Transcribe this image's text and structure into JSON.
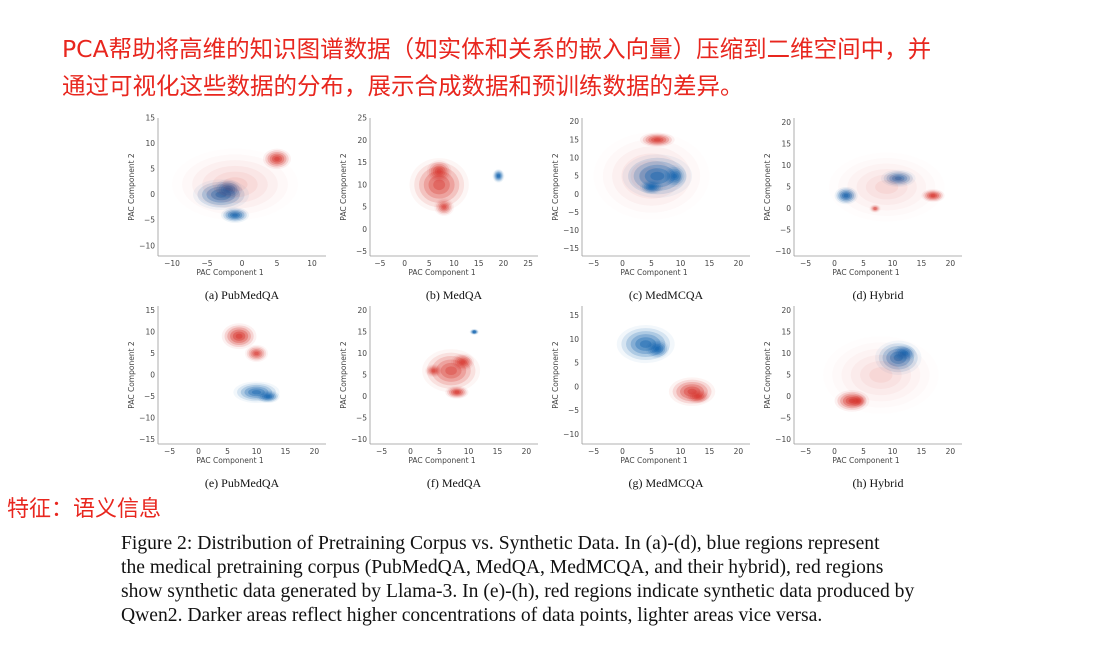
{
  "annotation_top": [
    "PCA帮助将高维的知识图谱数据（如实体和关系的嵌入向量）压缩到二维空间中，并",
    "通过可视化这些数据的分布，展示合成数据和预训练数据的差异。"
  ],
  "annotation_side": "特征：语义信息",
  "colors": {
    "annotation": "#e8261e",
    "blue": "#1565b0",
    "red": "#d83a33"
  },
  "figure": {
    "caption_lines": [
      "Figure 2: Distribution of Pretraining Corpus vs. Synthetic Data. In (a)-(d), blue regions represent",
      "the medical pretraining corpus (PubMedQA, MedQA, MedMCQA, and their hybrid), red regions",
      "show synthetic data generated by Llama-3. In (e)-(h), red regions indicate synthetic data produced by",
      "Qwen2. Darker areas reflect higher concentrations of data points, lighter areas vice versa."
    ],
    "axis_xlabel": "PAC Component 1",
    "axis_ylabel": "PAC Component 2"
  },
  "chart_data": [
    {
      "type": "heatmap",
      "caption": "(a) PubMedQA",
      "xticks": [
        -10,
        -5,
        0,
        5,
        10
      ],
      "yticks": [
        -10,
        -5,
        0,
        5,
        10,
        15
      ],
      "xlim": [
        -12,
        12
      ],
      "ylim": [
        -12,
        15
      ],
      "series": [
        {
          "name": "pretraining",
          "color": "blue",
          "clusters": [
            [
              -3,
              0,
              4,
              3,
              0.8
            ],
            [
              -1,
              -4,
              2,
              1.5,
              1
            ],
            [
              -2,
              1,
              2,
              2,
              1
            ]
          ]
        },
        {
          "name": "synthetic",
          "color": "red",
          "clusters": [
            [
              5,
              7,
              2,
              2,
              1
            ],
            [
              -1,
              2,
              9,
              7,
              0.15
            ]
          ]
        }
      ]
    },
    {
      "type": "heatmap",
      "caption": "(b) MedQA",
      "xticks": [
        -5,
        0,
        5,
        10,
        15,
        20,
        25
      ],
      "yticks": [
        -5,
        0,
        5,
        10,
        15,
        20,
        25
      ],
      "xlim": [
        -7,
        27
      ],
      "ylim": [
        -6,
        25
      ],
      "series": [
        {
          "name": "synthetic",
          "color": "red",
          "clusters": [
            [
              7,
              10,
              6,
              6,
              0.7
            ],
            [
              7,
              13,
              2.5,
              2.5,
              1
            ],
            [
              8,
              5,
              2,
              2,
              0.8
            ]
          ]
        },
        {
          "name": "pretraining",
          "color": "blue",
          "clusters": [
            [
              19,
              12,
              1.2,
              1.5,
              1
            ]
          ]
        }
      ]
    },
    {
      "type": "heatmap",
      "caption": "(c) MedMCQA",
      "xticks": [
        -5,
        0,
        5,
        10,
        15,
        20
      ],
      "yticks": [
        -15,
        -10,
        -5,
        0,
        5,
        10,
        15,
        20
      ],
      "xlim": [
        -7,
        22
      ],
      "ylim": [
        -17,
        21
      ],
      "series": [
        {
          "name": "synthetic",
          "color": "red",
          "clusters": [
            [
              6,
              15,
              3,
              2,
              1
            ],
            [
              5,
              5,
              10,
              12,
              0.15
            ]
          ]
        },
        {
          "name": "pretraining",
          "color": "blue",
          "clusters": [
            [
              6,
              5,
              6,
              6,
              0.8
            ],
            [
              5,
              2,
              2,
              2,
              1
            ],
            [
              9,
              5,
              2,
              3,
              0.9
            ]
          ]
        }
      ]
    },
    {
      "type": "heatmap",
      "caption": "(d) Hybrid",
      "xticks": [
        -5,
        0,
        5,
        10,
        15,
        20
      ],
      "yticks": [
        -10,
        -5,
        0,
        5,
        10,
        15,
        20
      ],
      "xlim": [
        -7,
        22
      ],
      "ylim": [
        -11,
        21
      ],
      "series": [
        {
          "name": "pretraining",
          "color": "blue",
          "clusters": [
            [
              2,
              3,
              2,
              2,
              1
            ],
            [
              11,
              7,
              3,
              2,
              0.8
            ]
          ]
        },
        {
          "name": "synthetic",
          "color": "red",
          "clusters": [
            [
              17,
              3,
              2,
              1.5,
              1
            ],
            [
              7,
              0,
              1,
              1,
              0.6
            ],
            [
              9,
              5,
              10,
              8,
              0.12
            ]
          ]
        }
      ]
    },
    {
      "type": "heatmap",
      "caption": "(e) PubMedQA",
      "xticks": [
        -5,
        0,
        5,
        10,
        15,
        20
      ],
      "yticks": [
        -15,
        -10,
        -5,
        0,
        5,
        10,
        15
      ],
      "xlim": [
        -7,
        22
      ],
      "ylim": [
        -16,
        16
      ],
      "series": [
        {
          "name": "synthetic",
          "color": "red",
          "clusters": [
            [
              7,
              9,
              3,
              3,
              1
            ],
            [
              10,
              5,
              2,
              2,
              0.8
            ]
          ]
        },
        {
          "name": "pretraining",
          "color": "blue",
          "clusters": [
            [
              10,
              -4,
              4,
              2.5,
              0.8
            ],
            [
              12,
              -5,
              2,
              1.5,
              1
            ]
          ]
        }
      ]
    },
    {
      "type": "heatmap",
      "caption": "(f) MedQA",
      "xticks": [
        -5,
        0,
        5,
        10,
        15,
        20
      ],
      "yticks": [
        -10,
        -5,
        0,
        5,
        10,
        15,
        20
      ],
      "xlim": [
        -7,
        22
      ],
      "ylim": [
        -11,
        21
      ],
      "series": [
        {
          "name": "synthetic",
          "color": "red",
          "clusters": [
            [
              7,
              6,
              5,
              5,
              0.7
            ],
            [
              9,
              8,
              2,
              2,
              1
            ],
            [
              8,
              1,
              2,
              1.5,
              1
            ],
            [
              4,
              6,
              1.5,
              1.5,
              0.8
            ]
          ]
        },
        {
          "name": "pretraining",
          "color": "blue",
          "clusters": [
            [
              11,
              15,
              0.8,
              0.7,
              1
            ]
          ]
        }
      ]
    },
    {
      "type": "heatmap",
      "caption": "(g) MedMCQA",
      "xticks": [
        -5,
        0,
        5,
        10,
        15,
        20
      ],
      "yticks": [
        -10,
        -5,
        0,
        5,
        10,
        15
      ],
      "xlim": [
        -7,
        22
      ],
      "ylim": [
        -12,
        17
      ],
      "series": [
        {
          "name": "pretraining",
          "color": "blue",
          "clusters": [
            [
              4,
              9,
              5,
              4,
              0.8
            ],
            [
              6,
              8,
              2,
              2,
              1
            ]
          ]
        },
        {
          "name": "synthetic",
          "color": "red",
          "clusters": [
            [
              12,
              -1,
              4,
              3,
              0.9
            ],
            [
              13,
              -2,
              2,
              1.5,
              1
            ]
          ]
        }
      ]
    },
    {
      "type": "heatmap",
      "caption": "(h) Hybrid",
      "xticks": [
        -5,
        0,
        5,
        10,
        15,
        20
      ],
      "yticks": [
        -10,
        -5,
        0,
        5,
        10,
        15,
        20
      ],
      "xlim": [
        -7,
        22
      ],
      "ylim": [
        -11,
        21
      ],
      "series": [
        {
          "name": "pretraining",
          "color": "blue",
          "clusters": [
            [
              11,
              9,
              4,
              4,
              0.8
            ],
            [
              12,
              10,
              2,
              2,
              1
            ]
          ]
        },
        {
          "name": "synthetic",
          "color": "red",
          "clusters": [
            [
              3,
              -1,
              3,
              2.5,
              1
            ],
            [
              4,
              -1,
              1.5,
              1.5,
              1
            ],
            [
              8,
              5,
              10,
              9,
              0.12
            ]
          ]
        }
      ]
    }
  ]
}
